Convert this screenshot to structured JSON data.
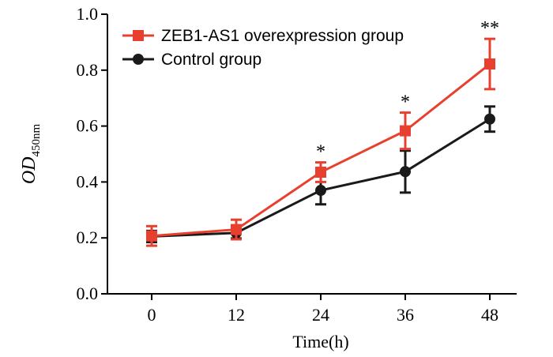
{
  "chart_data": {
    "type": "line",
    "title": "",
    "xlabel": "Time(h)",
    "ylabel": {
      "main": "OD",
      "subscript": "450nm"
    },
    "x": [
      0,
      12,
      24,
      36,
      48
    ],
    "x_tick_labels": [
      "0",
      "12",
      "24",
      "36",
      "48"
    ],
    "ylim": [
      0.0,
      1.0
    ],
    "y_ticks": [
      0.0,
      0.2,
      0.4,
      0.6,
      0.8,
      1.0
    ],
    "y_tick_labels": [
      "0.0",
      "0.2",
      "0.4",
      "0.6",
      "0.8",
      "1.0"
    ],
    "grid": false,
    "legend_position": "top-left",
    "series": [
      {
        "name": "ZEB1-AS1 overexpression group",
        "color": "#e8402f",
        "marker": "square",
        "values": [
          0.207,
          0.23,
          0.435,
          0.583,
          0.822
        ],
        "errors": [
          0.035,
          0.035,
          0.035,
          0.065,
          0.09
        ]
      },
      {
        "name": "Control group",
        "color": "#1a1a1a",
        "marker": "circle",
        "values": [
          0.205,
          0.218,
          0.37,
          0.437,
          0.625
        ],
        "errors": [
          0.02,
          0.02,
          0.05,
          0.075,
          0.045
        ]
      }
    ],
    "annotations": [
      {
        "x": 24,
        "text": "*"
      },
      {
        "x": 36,
        "text": "*"
      },
      {
        "x": 48,
        "text": "**"
      }
    ]
  }
}
